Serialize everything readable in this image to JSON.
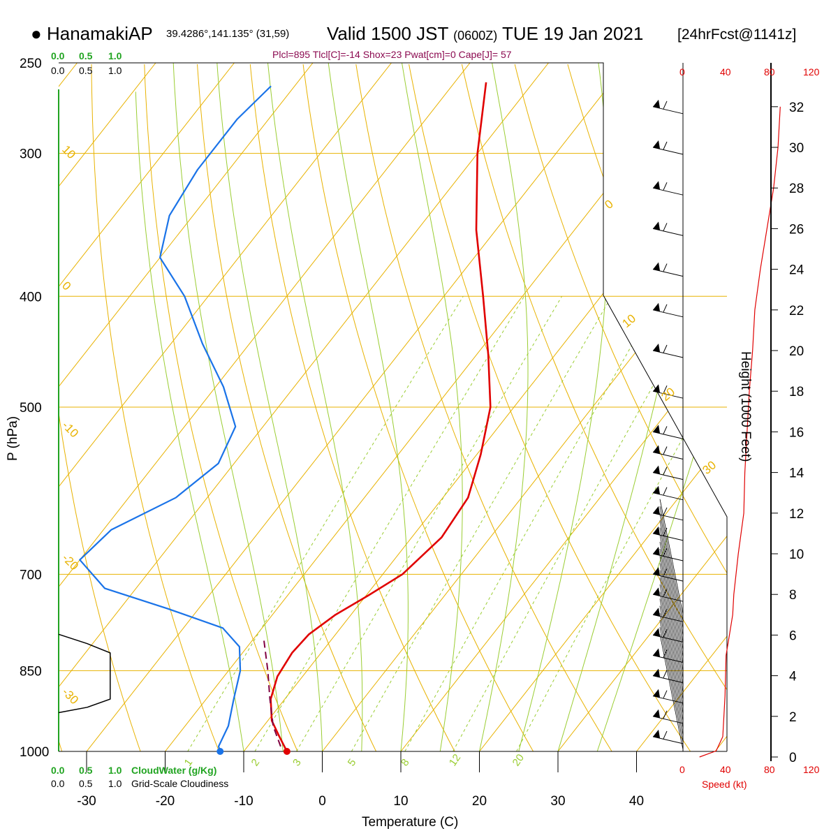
{
  "header": {
    "station_marker": "●",
    "station": "HanamakiAP",
    "coords": "39.4286°,141.135° (31,59)",
    "valid_prefix": "Valid 1500 JST",
    "valid_zulu": "(0600Z)",
    "valid_date": "TUE 19 Jan 2021",
    "forecast": "[24hrFcst@1141z]",
    "indices": "Plcl=895 Tlcl[C]=-14 Shox=23 Pwat[cm]=0 Cape[J]= 57"
  },
  "colors": {
    "temperature": "#e00000",
    "dewpoint": "#1a73e8",
    "parcel": "#800040",
    "isotherm": "#e8b200",
    "mixing_ratio": "#9acd32",
    "wind_speed": "#e00000",
    "cloudiness": "#000000",
    "cloudwater_label": "#21a421"
  },
  "labels": {
    "y_axis": "P (hPa)",
    "x_axis": "Temperature (C)",
    "height_axis": "Height (1000 Feet)",
    "speed_axis": "Speed (kt)",
    "cloudwater_scale": [
      "0.0",
      "0.5",
      "1.0"
    ],
    "cloudwater_title": "CloudWater (g/Kg)",
    "cloudiness_scale": [
      "0.0",
      "0.5",
      "1.0"
    ],
    "cloudiness_title": "Grid-Scale Cloudiness",
    "speed_ticks": [
      "0",
      "40",
      "80",
      "120"
    ]
  },
  "chart_data": {
    "type": "line",
    "subtype": "skew-T log-P sounding",
    "xlabel": "Temperature (C)",
    "ylabel": "P (hPa)",
    "xlim": [
      -34,
      36
    ],
    "ylim": [
      1000,
      250
    ],
    "y_scale": "log",
    "x_ticks": [
      -30,
      -20,
      -10,
      0,
      10,
      20,
      30,
      40
    ],
    "pressure_ticks": [
      250,
      300,
      400,
      500,
      700,
      850,
      1000
    ],
    "height_ticks_kft": [
      0,
      2,
      4,
      6,
      8,
      10,
      12,
      14,
      16,
      18,
      20,
      22,
      24,
      26,
      28,
      30,
      32
    ],
    "isotherm_labels": [
      "10",
      "0",
      "-10",
      "-20",
      "-30"
    ],
    "right_isotherm_labels": [
      "0",
      "10",
      "20",
      "30"
    ],
    "mixing_ratio_labels": [
      "1",
      "2",
      "3",
      "5",
      "8",
      "12",
      "20"
    ],
    "temperature": [
      {
        "p": 1000,
        "t": -4.5
      },
      {
        "p": 970,
        "t": -7.0
      },
      {
        "p": 940,
        "t": -9.5
      },
      {
        "p": 900,
        "t": -11.8
      },
      {
        "p": 860,
        "t": -13.2
      },
      {
        "p": 820,
        "t": -13.7
      },
      {
        "p": 790,
        "t": -13.4
      },
      {
        "p": 760,
        "t": -12.0
      },
      {
        "p": 730,
        "t": -9.7
      },
      {
        "p": 700,
        "t": -7.5
      },
      {
        "p": 650,
        "t": -6.2
      },
      {
        "p": 600,
        "t": -6.8
      },
      {
        "p": 550,
        "t": -9.5
      },
      {
        "p": 500,
        "t": -13.0
      },
      {
        "p": 450,
        "t": -18.5
      },
      {
        "p": 400,
        "t": -25.0
      },
      {
        "p": 350,
        "t": -32.5
      },
      {
        "p": 300,
        "t": -40.0
      },
      {
        "p": 260,
        "t": -46.0
      }
    ],
    "dewpoint": [
      {
        "p": 1000,
        "t": -13.0
      },
      {
        "p": 990,
        "t": -13.7
      },
      {
        "p": 950,
        "t": -14.5
      },
      {
        "p": 900,
        "t": -16.5
      },
      {
        "p": 850,
        "t": -18.5
      },
      {
        "p": 810,
        "t": -21.0
      },
      {
        "p": 780,
        "t": -25.0
      },
      {
        "p": 750,
        "t": -34.0
      },
      {
        "p": 720,
        "t": -44.0
      },
      {
        "p": 680,
        "t": -50.0
      },
      {
        "p": 640,
        "t": -49.0
      },
      {
        "p": 600,
        "t": -44.0
      },
      {
        "p": 560,
        "t": -42.0
      },
      {
        "p": 520,
        "t": -43.5
      },
      {
        "p": 480,
        "t": -49.0
      },
      {
        "p": 440,
        "t": -56.0
      },
      {
        "p": 400,
        "t": -63.0
      },
      {
        "p": 370,
        "t": -70.0
      },
      {
        "p": 340,
        "t": -73.0
      },
      {
        "p": 310,
        "t": -74.0
      },
      {
        "p": 280,
        "t": -74.0
      },
      {
        "p": 262,
        "t": -73.0
      }
    ],
    "parcel": [
      {
        "p": 990,
        "t": -5.8
      },
      {
        "p": 950,
        "t": -8.8
      },
      {
        "p": 900,
        "t": -11.9
      },
      {
        "p": 850,
        "t": -15.0
      },
      {
        "p": 800,
        "t": -18.5
      }
    ],
    "surface_temperature_marker": -4.5,
    "surface_dewpoint_marker": -13.0,
    "cloudiness": [
      {
        "p": 790,
        "v": 0.0
      },
      {
        "p": 805,
        "v": 0.5
      },
      {
        "p": 820,
        "v": 0.9
      },
      {
        "p": 860,
        "v": 0.9
      },
      {
        "p": 900,
        "v": 0.9
      },
      {
        "p": 915,
        "v": 0.5
      },
      {
        "p": 925,
        "v": 0.0
      }
    ],
    "wind_speed_kt": [
      {
        "h": 0,
        "s": 15
      },
      {
        "h": 0.3,
        "s": 30
      },
      {
        "h": 1,
        "s": 36
      },
      {
        "h": 3,
        "s": 38
      },
      {
        "h": 5,
        "s": 39
      },
      {
        "h": 6,
        "s": 42
      },
      {
        "h": 7,
        "s": 45
      },
      {
        "h": 8,
        "s": 46
      },
      {
        "h": 10,
        "s": 50
      },
      {
        "h": 12,
        "s": 55
      },
      {
        "h": 14,
        "s": 56
      },
      {
        "h": 16,
        "s": 58
      },
      {
        "h": 18,
        "s": 60
      },
      {
        "h": 20,
        "s": 63
      },
      {
        "h": 22,
        "s": 65
      },
      {
        "h": 24,
        "s": 70
      },
      {
        "h": 26,
        "s": 76
      },
      {
        "h": 28,
        "s": 82
      },
      {
        "h": 30,
        "s": 86
      },
      {
        "h": 32,
        "s": 88
      }
    ],
    "wind_barbs_kft": [
      1,
      2,
      3,
      4,
      5,
      6,
      7,
      8,
      9,
      10,
      11,
      12,
      13,
      14,
      15,
      16,
      18,
      20,
      22,
      24,
      26,
      28,
      30,
      32
    ]
  }
}
